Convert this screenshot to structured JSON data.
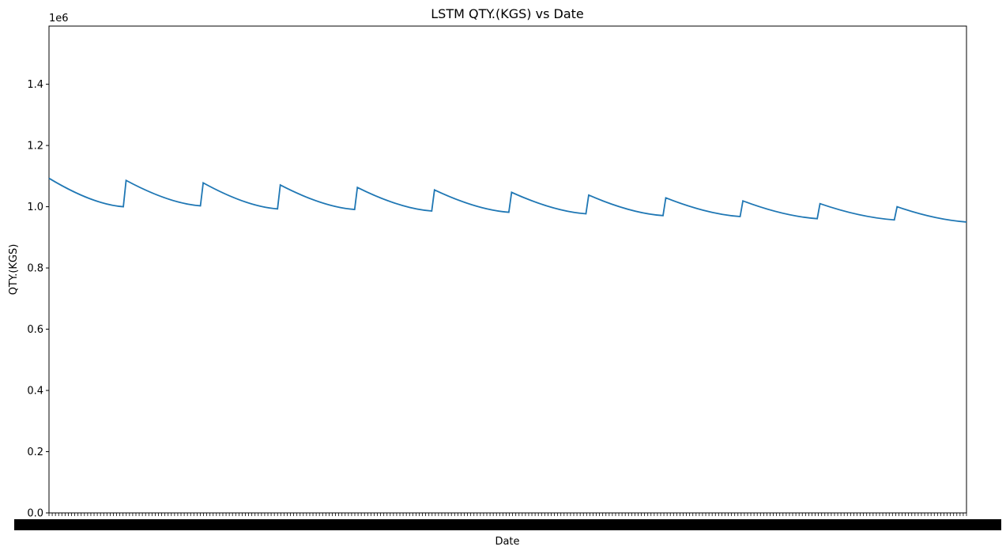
{
  "chart_data": {
    "type": "line",
    "title": "LSTM QTY.(KGS) vs Date",
    "xlabel": "Date",
    "ylabel": "QTY.(KGS)",
    "y_offset_label": "1e6",
    "ylim": [
      0,
      1.59
    ],
    "y_ticks": [
      "0.0",
      "0.2",
      "0.4",
      "0.6",
      "0.8",
      "1.0",
      "1.2",
      "1.4"
    ],
    "grid": false,
    "line_color": "#1f77b4",
    "series": [
      {
        "values": [
          1.093,
          1.0,
          1.086,
          1.003,
          1.078,
          0.993,
          1.071,
          0.991,
          1.063,
          0.986,
          1.055,
          0.982,
          1.047,
          0.977,
          1.038,
          0.971,
          1.029,
          0.968,
          1.019,
          0.961,
          1.01,
          0.957,
          1.0,
          0.95
        ]
      }
    ]
  }
}
